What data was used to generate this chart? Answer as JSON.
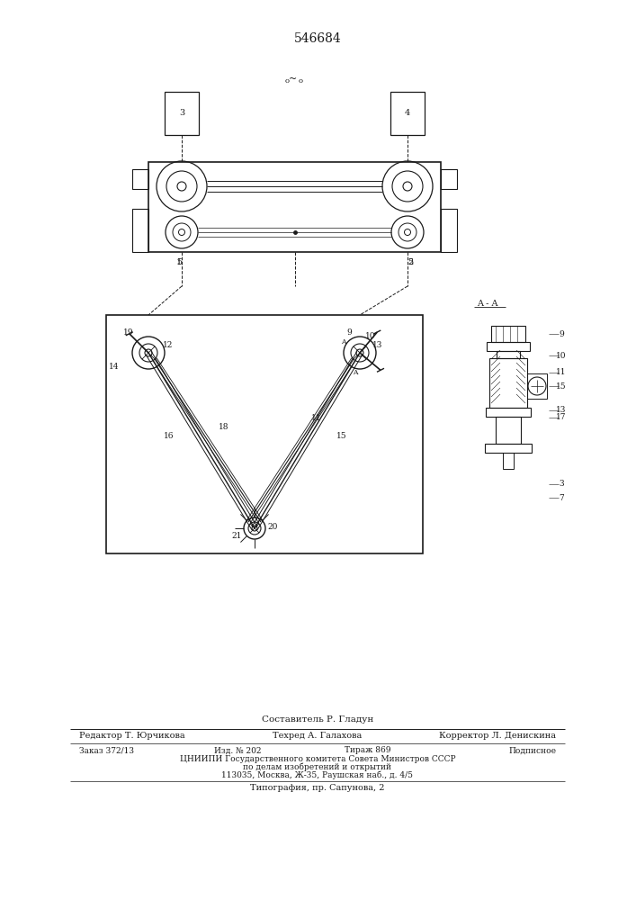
{
  "patent_number": "546684",
  "bg_color": "#ffffff",
  "line_color": "#1a1a1a",
  "footer_lines": [
    "Составитель Р. Гладун",
    "Редактор Т. Юрчикова",
    "Техред А. Галахова",
    "Корректор Л. Денискина",
    "Заказ 372/13",
    "Изд. № 202",
    "Тираж 869",
    "Подписное",
    "ЦНИИПИ Государственного комитета Совета Министров СССР",
    "по делам изобретений и открытий",
    "113035, Москва, Ж-35, Раушская наб., д. 4/5",
    "Типография, пр. Сапунова, 2"
  ]
}
